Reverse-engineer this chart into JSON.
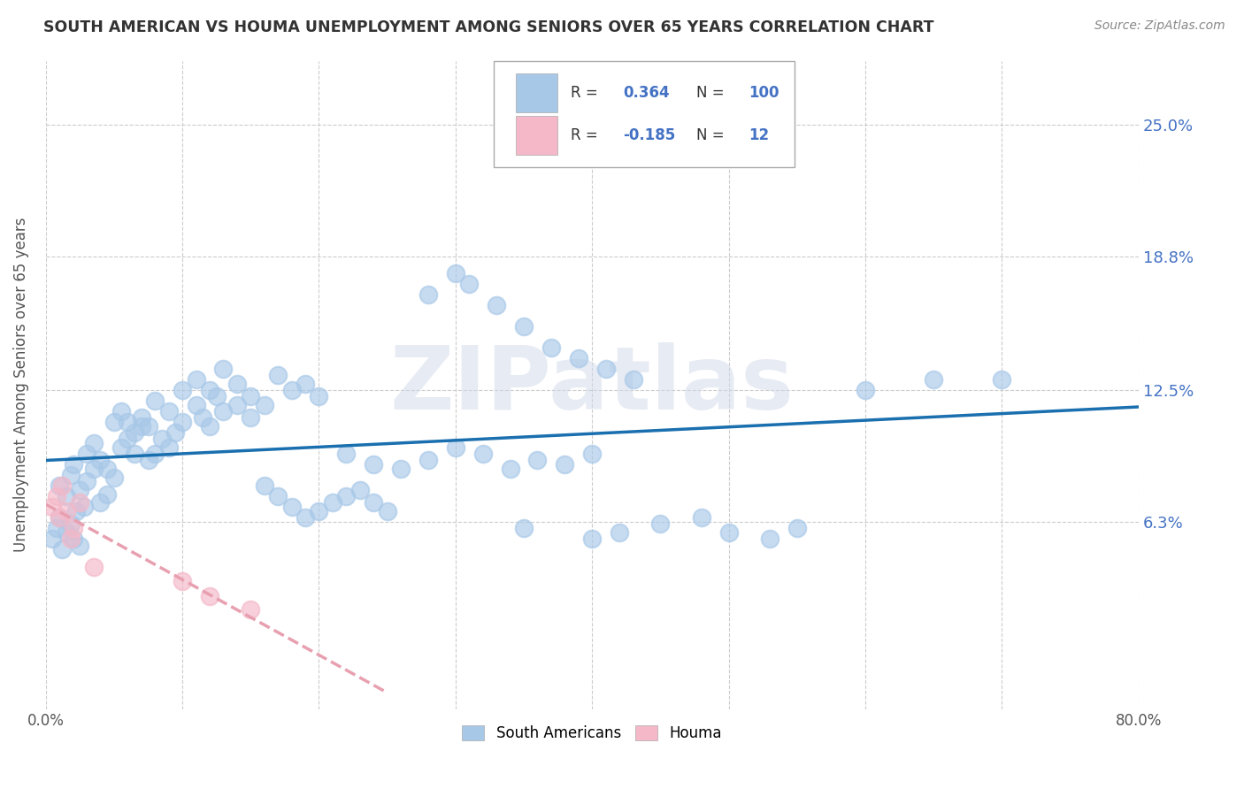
{
  "title": "SOUTH AMERICAN VS HOUMA UNEMPLOYMENT AMONG SENIORS OVER 65 YEARS CORRELATION CHART",
  "source": "Source: ZipAtlas.com",
  "ylabel": "Unemployment Among Seniors over 65 years",
  "xlim": [
    0.0,
    0.8
  ],
  "ylim": [
    -0.025,
    0.28
  ],
  "yticks": [
    0.063,
    0.125,
    0.188,
    0.25
  ],
  "ytick_labels": [
    "6.3%",
    "12.5%",
    "18.8%",
    "25.0%"
  ],
  "xticks": [
    0.0,
    0.1,
    0.2,
    0.3,
    0.4,
    0.5,
    0.6,
    0.7,
    0.8
  ],
  "xtick_labels": [
    "0.0%",
    "",
    "",
    "",
    "",
    "",
    "",
    "",
    "80.0%"
  ],
  "blue_R": 0.364,
  "blue_N": 100,
  "pink_R": -0.185,
  "pink_N": 12,
  "blue_color": "#a8c8e8",
  "pink_color": "#f4b8c8",
  "blue_line_color": "#1a6faf",
  "pink_line_color": "#e8a0b0",
  "watermark": "ZIPatlas",
  "legend_south_americans": "South Americans",
  "legend_houma": "Houma",
  "blue_scatter_x": [
    0.005,
    0.008,
    0.01,
    0.012,
    0.015,
    0.018,
    0.02,
    0.022,
    0.025,
    0.028,
    0.01,
    0.015,
    0.018,
    0.02,
    0.025,
    0.03,
    0.035,
    0.04,
    0.045,
    0.05,
    0.03,
    0.035,
    0.04,
    0.045,
    0.05,
    0.055,
    0.06,
    0.065,
    0.07,
    0.075,
    0.055,
    0.06,
    0.065,
    0.07,
    0.075,
    0.08,
    0.085,
    0.09,
    0.095,
    0.1,
    0.08,
    0.09,
    0.1,
    0.11,
    0.115,
    0.12,
    0.125,
    0.13,
    0.14,
    0.15,
    0.11,
    0.12,
    0.13,
    0.14,
    0.15,
    0.16,
    0.17,
    0.18,
    0.19,
    0.2,
    0.16,
    0.17,
    0.18,
    0.19,
    0.2,
    0.21,
    0.22,
    0.23,
    0.24,
    0.25,
    0.22,
    0.24,
    0.26,
    0.28,
    0.3,
    0.32,
    0.34,
    0.36,
    0.38,
    0.4,
    0.35,
    0.4,
    0.42,
    0.45,
    0.48,
    0.5,
    0.53,
    0.55,
    0.6,
    0.65,
    0.28,
    0.3,
    0.31,
    0.33,
    0.35,
    0.37,
    0.39,
    0.41,
    0.43,
    0.7
  ],
  "blue_scatter_y": [
    0.055,
    0.06,
    0.065,
    0.05,
    0.058,
    0.062,
    0.055,
    0.068,
    0.052,
    0.07,
    0.08,
    0.075,
    0.085,
    0.09,
    0.078,
    0.082,
    0.088,
    0.072,
    0.076,
    0.084,
    0.095,
    0.1,
    0.092,
    0.088,
    0.11,
    0.098,
    0.102,
    0.095,
    0.108,
    0.092,
    0.115,
    0.11,
    0.105,
    0.112,
    0.108,
    0.095,
    0.102,
    0.098,
    0.105,
    0.11,
    0.12,
    0.115,
    0.125,
    0.118,
    0.112,
    0.108,
    0.122,
    0.115,
    0.118,
    0.112,
    0.13,
    0.125,
    0.135,
    0.128,
    0.122,
    0.118,
    0.132,
    0.125,
    0.128,
    0.122,
    0.08,
    0.075,
    0.07,
    0.065,
    0.068,
    0.072,
    0.075,
    0.078,
    0.072,
    0.068,
    0.095,
    0.09,
    0.088,
    0.092,
    0.098,
    0.095,
    0.088,
    0.092,
    0.09,
    0.095,
    0.06,
    0.055,
    0.058,
    0.062,
    0.065,
    0.058,
    0.055,
    0.06,
    0.125,
    0.13,
    0.17,
    0.18,
    0.175,
    0.165,
    0.155,
    0.145,
    0.14,
    0.135,
    0.13,
    0.13
  ],
  "pink_scatter_x": [
    0.005,
    0.008,
    0.01,
    0.012,
    0.015,
    0.018,
    0.02,
    0.025,
    0.1,
    0.12,
    0.15,
    0.035
  ],
  "pink_scatter_y": [
    0.07,
    0.075,
    0.065,
    0.08,
    0.068,
    0.055,
    0.06,
    0.072,
    0.035,
    0.028,
    0.022,
    0.042
  ]
}
